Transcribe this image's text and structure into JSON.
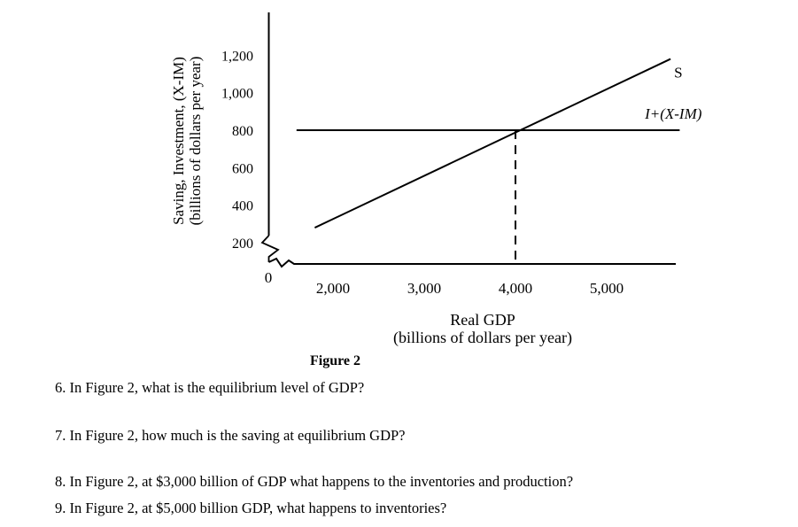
{
  "chart_data": {
    "type": "line",
    "figure_caption": "Figure 2",
    "xlabel": "Real GDP",
    "xlabel_sub": "(billions of dollars per year)",
    "ylabel": "Saving, Investment, (X-IM)",
    "ylabel_sub": "(billions of dollars per year)",
    "origin_label": "0",
    "x_ticks": [
      {
        "value": 2000,
        "label": "2,000"
      },
      {
        "value": 3000,
        "label": "3,000"
      },
      {
        "value": 4000,
        "label": "4,000"
      },
      {
        "value": 5000,
        "label": "5,000"
      }
    ],
    "y_ticks": [
      {
        "value": 200,
        "label": "200"
      },
      {
        "value": 400,
        "label": "400"
      },
      {
        "value": 600,
        "label": "600"
      },
      {
        "value": 800,
        "label": "800"
      },
      {
        "value": 1000,
        "label": "1,000"
      },
      {
        "value": 1200,
        "label": "1,200"
      }
    ],
    "axis_breaks": true,
    "xlim": [
      1550,
      5800
    ],
    "ylim": [
      100,
      1400
    ],
    "series": [
      {
        "name": "S",
        "label": "S",
        "x": [
          1800,
          5700
        ],
        "y": [
          280,
          1180
        ]
      },
      {
        "name": "I+(X-IM)",
        "label": "I+(X-IM)",
        "x": [
          1600,
          5800
        ],
        "y": [
          800,
          800
        ]
      }
    ],
    "equilibrium": {
      "x": 4000,
      "y": 800,
      "dashed_drop_line": true
    }
  },
  "questions": [
    {
      "text": "6.  In Figure 2, what is the equilibrium level of GDP?"
    },
    {
      "text": "7.  In Figure 2, how much is the saving at equilibrium GDP?"
    },
    {
      "text": "8.  In Figure 2, at $3,000 billion of GDP what happens to the inventories and production?"
    },
    {
      "text": "9.  In Figure 2, at $5,000 billion GDP, what happens to inventories?"
    }
  ]
}
